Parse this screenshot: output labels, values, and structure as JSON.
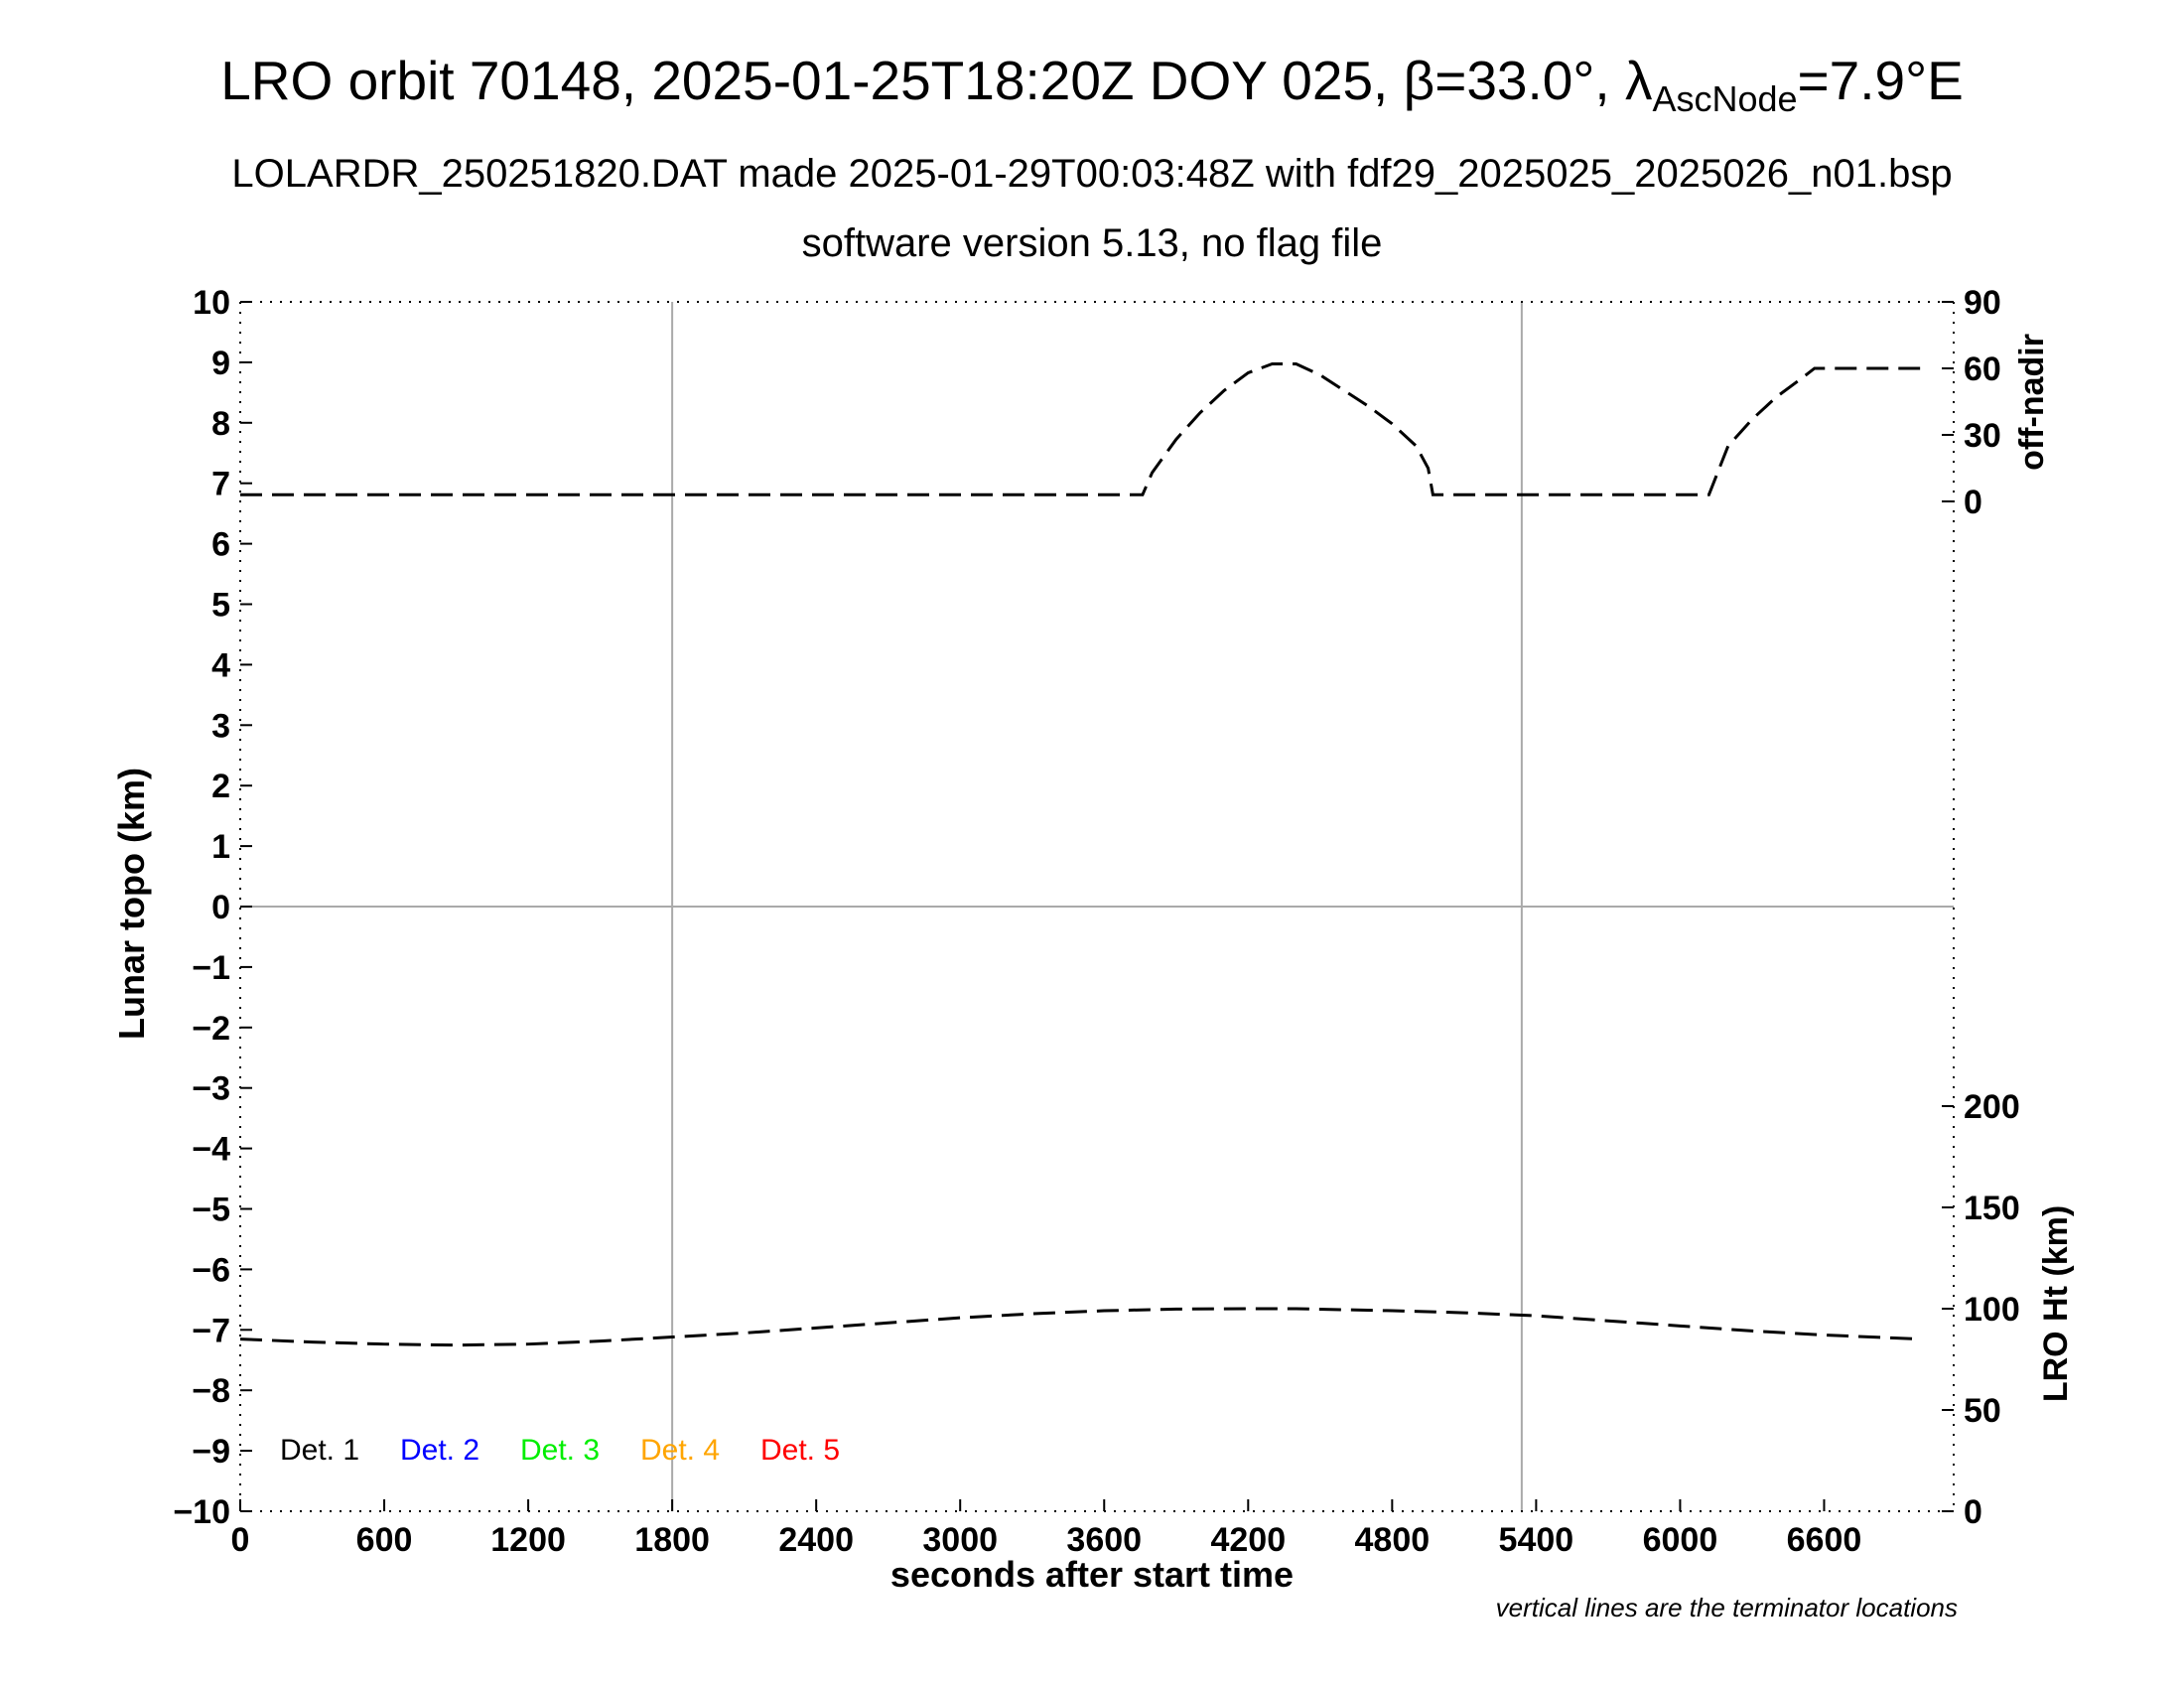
{
  "header": {
    "title_main": "LRO orbit 70148, 2025-01-25T18:20Z DOY 025, ",
    "title_beta": "β=33.0°, ",
    "title_lambda": "λ",
    "title_sub": "AscNode",
    "title_tail": "=7.9°E",
    "subtitle": "LOLARDR_250251820.DAT made 2025-01-29T00:03:48Z with fdf29_2025025_2025026_n01.bsp",
    "subtitle2": "software version 5.13, no flag file"
  },
  "footnote": "vertical lines are the terminator locations",
  "legend": {
    "placement": "bottom-left",
    "items": [
      {
        "label": "Det. 1",
        "color": "#000000"
      },
      {
        "label": "Det. 2",
        "color": "#0000ff"
      },
      {
        "label": "Det. 3",
        "color": "#00ee00"
      },
      {
        "label": "Det. 4",
        "color": "#ffa500"
      },
      {
        "label": "Det. 5",
        "color": "#ff0000"
      }
    ]
  },
  "chart_data": {
    "type": "line",
    "xlabel": "seconds after start time",
    "ylabel": "Lunar topo (km)",
    "xlim": [
      0,
      7140
    ],
    "ylim": [
      -10,
      10
    ],
    "x_ticks": [
      "0",
      "600",
      "1200",
      "1800",
      "2400",
      "3000",
      "3600",
      "4200",
      "4800",
      "5400",
      "6000",
      "6600"
    ],
    "x_tick_values": [
      0,
      600,
      1200,
      1800,
      2400,
      3000,
      3600,
      4200,
      4800,
      5400,
      6000,
      6600
    ],
    "y_ticks": [
      "10",
      "9",
      "8",
      "7",
      "6",
      "5",
      "4",
      "3",
      "2",
      "1",
      "0",
      "−1",
      "−2",
      "−3",
      "−4",
      "−5",
      "−6",
      "−7",
      "−8",
      "−9",
      "−10"
    ],
    "y_tick_values": [
      10,
      9,
      8,
      7,
      6,
      5,
      4,
      3,
      2,
      1,
      0,
      -1,
      -2,
      -3,
      -4,
      -5,
      -6,
      -7,
      -8,
      -9,
      -10
    ],
    "terminator_lines_x": [
      1800,
      5340
    ],
    "zero_line_y": 0,
    "right_axis_offnadir": {
      "label": "off-nadir",
      "ticks": [
        "90",
        "60",
        "30",
        "0"
      ],
      "tick_values": [
        90,
        60,
        30,
        0
      ],
      "series": {
        "x": [
          0,
          600,
          1200,
          1800,
          2400,
          3000,
          3600,
          3760,
          3800,
          3900,
          4000,
          4100,
          4200,
          4300,
          4400,
          4500,
          4600,
          4700,
          4800,
          4900,
          4950,
          4970,
          5200,
          5800,
          6100,
          6120,
          6200,
          6300,
          6400,
          6500,
          6560,
          6800,
          7000
        ],
        "y": [
          3,
          3,
          3,
          3,
          3,
          3,
          3,
          3,
          13,
          28,
          40,
          50,
          58,
          62,
          62,
          57,
          50,
          43,
          35,
          25,
          15,
          3,
          3,
          3,
          3,
          3,
          25,
          37,
          47,
          55,
          60,
          60,
          60
        ]
      }
    },
    "right_axis_height": {
      "label": "LRO Ht (km)",
      "ticks": [
        "200",
        "150",
        "100",
        "50",
        "0"
      ],
      "tick_values": [
        200,
        150,
        100,
        50,
        0
      ],
      "series": {
        "x": [
          0,
          300,
          600,
          900,
          1200,
          1500,
          1800,
          2100,
          2400,
          2700,
          3000,
          3300,
          3600,
          3900,
          4200,
          4400,
          4800,
          5100,
          5400,
          5700,
          6000,
          6300,
          6600,
          7000
        ],
        "y": [
          85,
          83.5,
          82.5,
          82,
          82.5,
          84,
          86,
          88,
          90.5,
          93,
          95.5,
          97.5,
          99,
          99.8,
          100,
          100,
          99,
          98,
          96.5,
          94,
          91.5,
          89,
          87,
          85
        ]
      }
    }
  }
}
